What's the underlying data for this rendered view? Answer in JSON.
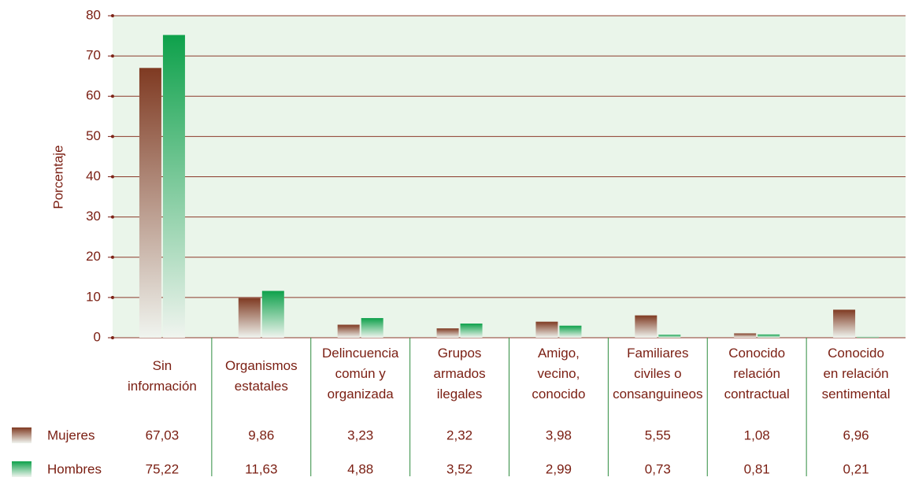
{
  "chart_data": {
    "type": "bar",
    "y_label": "Porcentaje",
    "categories": [
      "Sin\ninformación",
      "Organismos\nestatales",
      "Delincuencia\ncomún y\norganizada",
      "Grupos\narmados\nilegales",
      "Amigo,\nvecino,\nconocido",
      "Familiares\nciviles o\nconsanguineos",
      "Conocido\nrelación\ncontractual",
      "Conocido\nen relación\nsentimental"
    ],
    "series": [
      {
        "name": "Mujeres",
        "color": "#7f3a22",
        "values": [
          67.03,
          9.86,
          3.23,
          2.32,
          3.98,
          5.55,
          1.08,
          6.96
        ],
        "value_labels": [
          "67,03",
          "9,86",
          "3,23",
          "2,32",
          "3,98",
          "5,55",
          "1,08",
          "6,96"
        ]
      },
      {
        "name": "Hombres",
        "color": "#0ea14b",
        "values": [
          75.22,
          11.63,
          4.88,
          3.52,
          2.99,
          0.73,
          0.81,
          0.21
        ],
        "value_labels": [
          "75,22",
          "11,63",
          "4,88",
          "3,52",
          "2,99",
          "0,73",
          "0,81",
          "0,21"
        ]
      }
    ],
    "ylim": [
      0,
      80
    ],
    "yticks": [
      0,
      10,
      20,
      30,
      40,
      50,
      60,
      70,
      80
    ],
    "grid": true
  }
}
